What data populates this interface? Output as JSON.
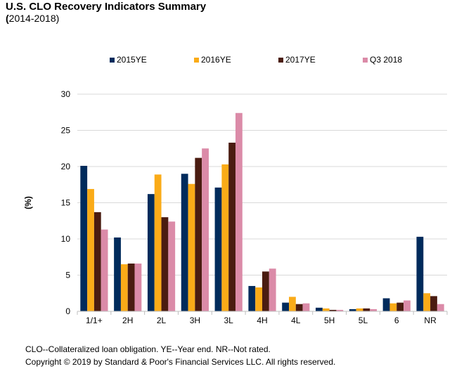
{
  "title": "U.S. CLO Recovery Indicators Summary",
  "subtitle_open": "(",
  "subtitle_rest": "2014-2018)",
  "footnote_1": "CLO--Collateralized loan obligation. YE--Year end. NR--Not rated.",
  "footnote_2": "Copyright © 2019 by Standard & Poor's Financial Services LLC. All rights reserved.",
  "chart_data": {
    "type": "bar",
    "title": "U.S. CLO Recovery Indicators Summary",
    "subtitle": "(2014-2018)",
    "xlabel": "",
    "ylabel": "(%)",
    "ylim": [
      0,
      30
    ],
    "yticks": [
      0,
      5,
      10,
      15,
      20,
      25,
      30
    ],
    "grid": true,
    "legend_position": "top",
    "categories": [
      "1/1+",
      "2H",
      "2L",
      "3H",
      "3L",
      "4H",
      "4L",
      "5H",
      "5L",
      "6",
      "NR"
    ],
    "series": [
      {
        "name": "2015YE",
        "color": "#002B5C",
        "values": [
          20.1,
          10.2,
          16.2,
          19.0,
          17.1,
          3.5,
          1.2,
          0.5,
          0.3,
          1.8,
          10.3
        ]
      },
      {
        "name": "2016YE",
        "color": "#FAAB18",
        "values": [
          16.9,
          6.5,
          18.9,
          17.6,
          20.3,
          3.3,
          2.0,
          0.4,
          0.4,
          1.1,
          2.5
        ]
      },
      {
        "name": "2017YE",
        "color": "#4A1C11",
        "values": [
          13.7,
          6.6,
          13.0,
          21.2,
          23.3,
          5.5,
          1.0,
          0.2,
          0.4,
          1.2,
          2.1
        ]
      },
      {
        "name": "Q3 2018",
        "color": "#DB8BA8",
        "values": [
          11.3,
          6.6,
          12.4,
          22.5,
          27.4,
          5.9,
          1.1,
          0.2,
          0.3,
          1.5,
          1.0
        ]
      }
    ]
  }
}
